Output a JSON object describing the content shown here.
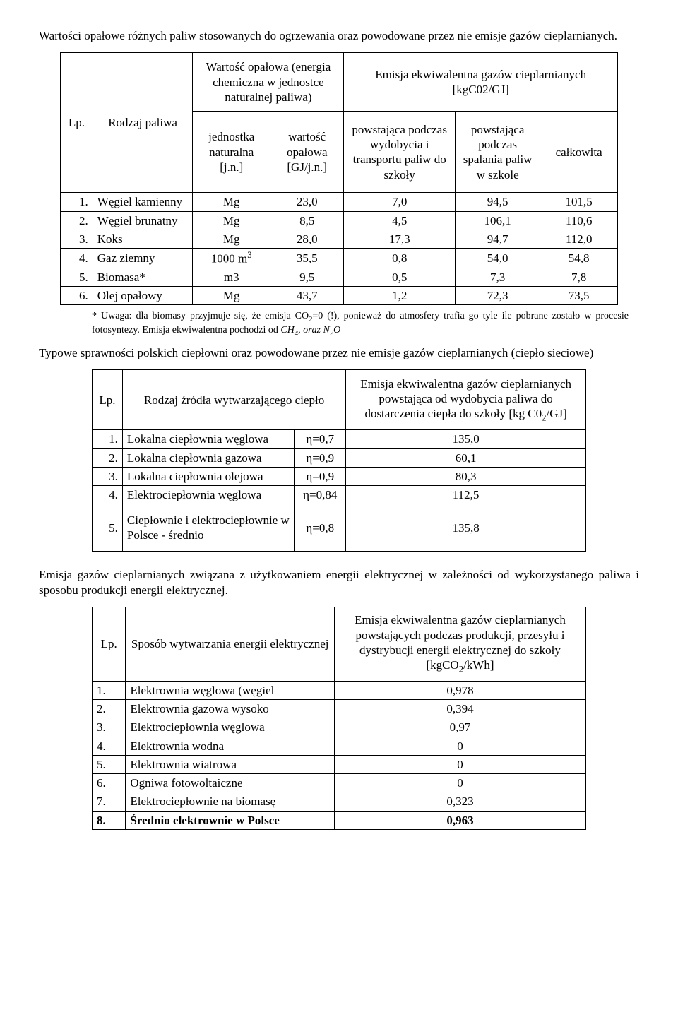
{
  "intro1": "Wartości opałowe różnych paliw stosowanych do ogrzewania oraz powodowane przez nie emisje gazów cieplarnianych.",
  "t1": {
    "h_lp": "Lp.",
    "h_rodzaj": "Rodzaj paliwa",
    "h_opalowa": "Wartość opałowa (energia chemiczna w jednostce naturalnej paliwa)",
    "h_emisja": "Emisja ekwiwalentna gazów cieplarnianych [kgC02/GJ]",
    "h_jedn": "jednostka naturalna [j.n.]",
    "h_wart": "wartość opałowa [GJ/j.n.]",
    "h_wyd": "powstająca podczas wydobycia i transportu paliw do szkoły",
    "h_spal": "powstająca podczas spalania paliw w szkole",
    "h_calk": "całkowita",
    "rows": [
      {
        "lp": "1.",
        "name": "Węgiel kamienny",
        "unit": "Mg",
        "val": "23,0",
        "e1": "7,0",
        "e2": "94,5",
        "e3": "101,5"
      },
      {
        "lp": "2.",
        "name": "Węgiel brunatny",
        "unit": "Mg",
        "val": "8,5",
        "e1": "4,5",
        "e2": "106,1",
        "e3": "110,6"
      },
      {
        "lp": "3.",
        "name": "Koks",
        "unit": "Mg",
        "val": "28,0",
        "e1": "17,3",
        "e2": "94,7",
        "e3": "112,0"
      },
      {
        "lp": "4.",
        "name": "Gaz ziemny",
        "unit": "1000 m",
        "sup": "3",
        "val": "35,5",
        "e1": "0,8",
        "e2": "54,0",
        "e3": "54,8"
      },
      {
        "lp": "5.",
        "name": "Biomasa*",
        "unit": "m3",
        "val": "9,5",
        "e1": "0,5",
        "e2": "7,3",
        "e3": "7,8"
      },
      {
        "lp": "6.",
        "name": "Olej opałowy",
        "unit": "Mg",
        "val": "43,7",
        "e1": "1,2",
        "e2": "72,3",
        "e3": "73,5"
      }
    ]
  },
  "footnote_pre": "* Uwaga: dla biomasy przyjmuje się, że emisja CO",
  "footnote_mid": "=0 (!), ponieważ do atmosfery trafia go tyle ile pobrane zostało w procesie fotosyntezy. Emisja ekwiwalentna pochodzi od ",
  "footnote_ch": "CH",
  "footnote_and": ", oraz ",
  "footnote_n2o": "N",
  "footnote_o": "O",
  "intro2": "Typowe sprawności polskich ciepłowni oraz powodowane przez nie emisje gazów cieplarnianych (ciepło sieciowe)",
  "t2": {
    "h_lp": "Lp.",
    "h_rodzaj": "Rodzaj źródła wytwarzającego ciepło",
    "h_emisja_a": "Emisja ekwiwalentna gazów cieplarnianych powstająca od wydobycia paliwa do dostarczenia ciepła do szkoły [kg C0",
    "h_emisja_b": "/GJ]",
    "rows": [
      {
        "lp": "1.",
        "name": "Lokalna ciepłownia węglowa",
        "eta": "η=0,7",
        "val": "135,0"
      },
      {
        "lp": "2.",
        "name": "Lokalna ciepłownia gazowa",
        "eta": "η=0,9",
        "val": "60,1"
      },
      {
        "lp": "3.",
        "name": "Lokalna ciepłownia olejowa",
        "eta": "η=0,9",
        "val": "80,3"
      },
      {
        "lp": "4.",
        "name": "Elektrociepłownia węglowa",
        "eta": "η=0,84",
        "val": "112,5"
      },
      {
        "lp": "5.",
        "name": "Ciepłownie i elektrociepłownie w Polsce - średnio",
        "eta": "η=0,8",
        "val": "135,8"
      }
    ]
  },
  "intro3": "Emisja gazów cieplarnianych związana z użytkowaniem energii elektrycznej w zależności od wykorzystanego paliwa i sposobu produkcji energii elektrycznej.",
  "t3": {
    "h_lp": "Lp.",
    "h_sposob": "Sposób wytwarzania energii elektrycznej",
    "h_emisja_a": "Emisja ekwiwalentna gazów cieplarnianych powstających podczas produkcji, przesyłu i dystrybucji energii elektrycznej do szkoły [kgCO",
    "h_emisja_b": "/kWh]",
    "rows": [
      {
        "lp": "1.",
        "name": "Elektrownia węglowa (węgiel",
        "val": "0,978"
      },
      {
        "lp": "2.",
        "name": "Elektrownia gazowa wysoko",
        "val": "0,394"
      },
      {
        "lp": "3.",
        "name": "Elektrociepłownia węglowa",
        "val": "0,97"
      },
      {
        "lp": "4.",
        "name": "Elektrownia wodna",
        "val": "0"
      },
      {
        "lp": "5.",
        "name": "Elektrownia wiatrowa",
        "val": "0"
      },
      {
        "lp": "6.",
        "name": "Ogniwa fotowoltaiczne",
        "val": "0"
      },
      {
        "lp": "7.",
        "name": "Elektrociepłownie na biomasę",
        "val": "0,323"
      },
      {
        "lp": "8.",
        "name": "Średnio elektrownie w Polsce",
        "val": "0,963",
        "bold": true
      }
    ]
  }
}
